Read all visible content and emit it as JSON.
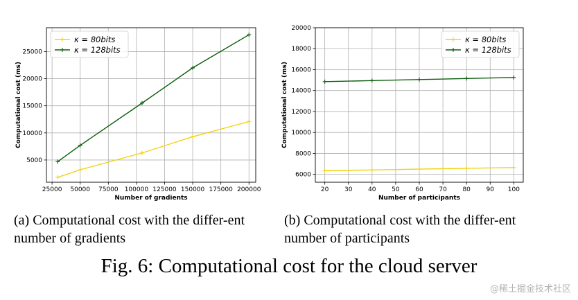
{
  "chart_data": [
    {
      "type": "line",
      "title": "",
      "xlabel": "Number of gradients",
      "ylabel": "Computational cost (ms)",
      "xlim": [
        20000,
        206000
      ],
      "ylim": [
        900,
        29400
      ],
      "xticks": [
        25000,
        50000,
        75000,
        100000,
        125000,
        150000,
        175000,
        200000
      ],
      "xtick_labels": [
        "25000",
        "50000",
        "75000",
        "100000",
        "125000",
        "150000",
        "175000",
        "200000"
      ],
      "yticks": [
        5000,
        10000,
        15000,
        20000,
        25000
      ],
      "ytick_labels": [
        "5000",
        "10000",
        "15000",
        "20000",
        "25000"
      ],
      "grid": true,
      "legend_position": "top-left",
      "x": [
        30000,
        50000,
        105000,
        150000,
        200000
      ],
      "series": [
        {
          "name": "κ = 80bits",
          "legend_symbol": "κ",
          "legend_rest": " = 80bits",
          "color": "#f2d20c",
          "values": [
            1800,
            3200,
            6300,
            9300,
            12100
          ]
        },
        {
          "name": "κ = 128bits",
          "legend_symbol": "κ",
          "legend_rest": " = 128bits",
          "color": "#0b5c0b",
          "values": [
            4700,
            7700,
            15500,
            22000,
            28100
          ]
        }
      ]
    },
    {
      "type": "line",
      "title": "",
      "xlabel": "Number of participants",
      "ylabel": "Computational cost (ms)",
      "xlim": [
        16,
        104
      ],
      "ylim": [
        5250,
        20000
      ],
      "xticks": [
        20,
        30,
        40,
        50,
        60,
        70,
        80,
        90,
        100
      ],
      "xtick_labels": [
        "20",
        "30",
        "40",
        "50",
        "60",
        "70",
        "80",
        "90",
        "100"
      ],
      "yticks": [
        6000,
        8000,
        10000,
        12000,
        14000,
        16000,
        18000,
        20000
      ],
      "ytick_labels": [
        "6000",
        "8000",
        "10000",
        "12000",
        "14000",
        "16000",
        "18000",
        "20000"
      ],
      "grid": true,
      "legend_position": "top-right",
      "x": [
        20,
        40,
        60,
        80,
        100
      ],
      "series": [
        {
          "name": "κ = 80bits",
          "legend_symbol": "κ",
          "legend_rest": " = 80bits",
          "color": "#f2d20c",
          "values": [
            6350,
            6420,
            6500,
            6580,
            6650
          ]
        },
        {
          "name": "κ = 128bits",
          "legend_symbol": "κ",
          "legend_rest": " = 128bits",
          "color": "#0b5c0b",
          "values": [
            14850,
            14950,
            15050,
            15150,
            15250
          ]
        }
      ]
    }
  ],
  "captions": {
    "a": "(a) Computational cost with the differ-ent number of gradients",
    "b": "(b) Computational cost with the differ-ent number of participants",
    "figure": "Fig. 6: Computational cost for the cloud server"
  },
  "watermark": "@稀土掘金技术社区"
}
